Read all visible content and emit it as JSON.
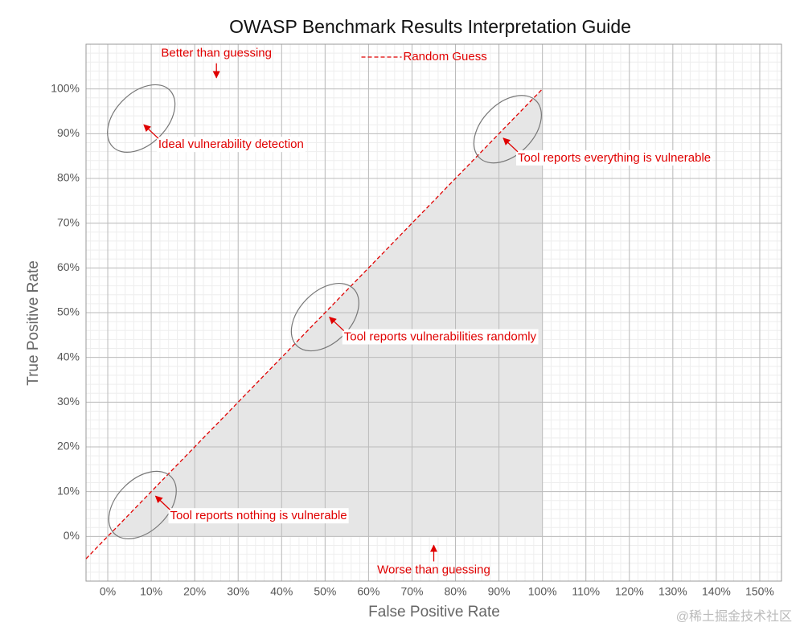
{
  "chart_data": {
    "type": "line",
    "title": "OWASP Benchmark Results Interpretation Guide",
    "xlabel": "False Positive Rate",
    "ylabel": "True Positive Rate",
    "xlim": [
      -5,
      155
    ],
    "ylim": [
      -10,
      110
    ],
    "xticks": [
      {
        "value": 0,
        "label": "0%"
      },
      {
        "value": 10,
        "label": "10%"
      },
      {
        "value": 20,
        "label": "20%"
      },
      {
        "value": 30,
        "label": "30%"
      },
      {
        "value": 40,
        "label": "40%"
      },
      {
        "value": 50,
        "label": "50%"
      },
      {
        "value": 60,
        "label": "60%"
      },
      {
        "value": 70,
        "label": "70%"
      },
      {
        "value": 80,
        "label": "80%"
      },
      {
        "value": 90,
        "label": "90%"
      },
      {
        "value": 100,
        "label": "100%"
      },
      {
        "value": 110,
        "label": "110%"
      },
      {
        "value": 120,
        "label": "120%"
      },
      {
        "value": 130,
        "label": "130%"
      },
      {
        "value": 140,
        "label": "140%"
      },
      {
        "value": 150,
        "label": "150%"
      }
    ],
    "yticks": [
      {
        "value": 0,
        "label": "0%"
      },
      {
        "value": 10,
        "label": "10%"
      },
      {
        "value": 20,
        "label": "20%"
      },
      {
        "value": 30,
        "label": "30%"
      },
      {
        "value": 40,
        "label": "40%"
      },
      {
        "value": 50,
        "label": "50%"
      },
      {
        "value": 60,
        "label": "60%"
      },
      {
        "value": 70,
        "label": "70%"
      },
      {
        "value": 80,
        "label": "80%"
      },
      {
        "value": 90,
        "label": "90%"
      },
      {
        "value": 100,
        "label": "100%"
      }
    ],
    "grid": true,
    "minor_grid": true,
    "legend": "upper center",
    "series": [
      {
        "name": "Random Guess",
        "color": "#e00000",
        "dashed": true,
        "x": [
          -5,
          100
        ],
        "values": [
          -5,
          100
        ]
      }
    ],
    "shaded_region": {
      "color": "#e6e6e6",
      "x": [
        0,
        100,
        100
      ],
      "values": [
        0,
        0,
        100
      ]
    },
    "annotations": [
      {
        "text": "Better than guessing",
        "xy": [
          25,
          102.5
        ]
      },
      {
        "text": "Ideal vulnerability detection",
        "xy": [
          8.3,
          92
        ],
        "circle": [
          7.7,
          93.4
        ]
      },
      {
        "text": "Tool reports everything is vulnerable",
        "xy": [
          91,
          89
        ],
        "circle": [
          92,
          91
        ]
      },
      {
        "text": "Tool reports vulnerabilities randomly",
        "xy": [
          51,
          49
        ],
        "circle": [
          50,
          49
        ]
      },
      {
        "text": "Tool reports nothing is vulnerable",
        "xy": [
          11,
          9
        ],
        "circle": [
          8,
          7
        ]
      },
      {
        "text": "Worse than guessing",
        "xy": [
          75,
          -2
        ]
      }
    ],
    "watermark": "@稀土掘金技术社区"
  }
}
